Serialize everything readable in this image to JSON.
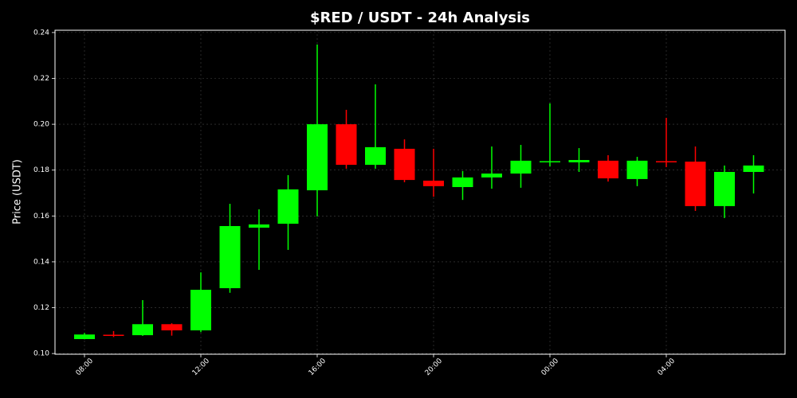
{
  "chart_data": {
    "type": "candlestick",
    "title": "$RED / USDT - 24h Analysis",
    "y_label": "Price (USDT)",
    "categories": [
      "08:00",
      null,
      null,
      null,
      "12:00",
      null,
      null,
      null,
      "16:00",
      null,
      null,
      null,
      "20:00",
      null,
      null,
      null,
      "00:00",
      null,
      null,
      null,
      "04:00",
      null,
      null,
      null
    ],
    "open": [
      0.1063,
      0.1082,
      0.108,
      0.1128,
      0.1101,
      0.1285,
      0.1549,
      0.1566,
      0.1712,
      0.2,
      0.1823,
      0.1893,
      0.1754,
      0.1726,
      0.1768,
      0.1785,
      0.1834,
      0.1834,
      0.1841,
      0.1761,
      0.1839,
      0.1837,
      0.1643,
      0.1792
    ],
    "high": [
      0.109,
      0.1098,
      0.1233,
      0.1132,
      0.1354,
      0.1653,
      0.1629,
      0.1778,
      0.2348,
      0.2063,
      0.2174,
      0.1934,
      0.1893,
      0.1796,
      0.1903,
      0.191,
      0.2091,
      0.1896,
      0.1865,
      0.1858,
      0.2028,
      0.1903,
      0.182,
      0.1865
    ],
    "low": [
      0.1062,
      0.1072,
      0.1077,
      0.1078,
      0.1093,
      0.1265,
      0.1365,
      0.1452,
      0.1598,
      0.1806,
      0.1806,
      0.1747,
      0.1684,
      0.167,
      0.1719,
      0.1723,
      0.1816,
      0.1792,
      0.175,
      0.173,
      0.1813,
      0.1622,
      0.1591,
      0.1698
    ],
    "close": [
      0.1083,
      0.1078,
      0.1128,
      0.1101,
      0.1278,
      0.1556,
      0.1563,
      0.1716,
      0.2,
      0.1823,
      0.19,
      0.1757,
      0.173,
      0.1768,
      0.1785,
      0.1841,
      0.1839,
      0.1844,
      0.1764,
      0.1841,
      0.1834,
      0.1643,
      0.1792,
      0.182
    ],
    "up_color": "#00ff00",
    "down_color": "#ff0000",
    "ylim": [
      0.0997,
      0.241
    ],
    "yticks": [
      {
        "value": 0.1,
        "label": "0.10"
      },
      0.12,
      0.14,
      0.16,
      0.18,
      {
        "value": 0.2,
        "label": "0.20"
      },
      0.22,
      0.24
    ],
    "grid": true
  }
}
